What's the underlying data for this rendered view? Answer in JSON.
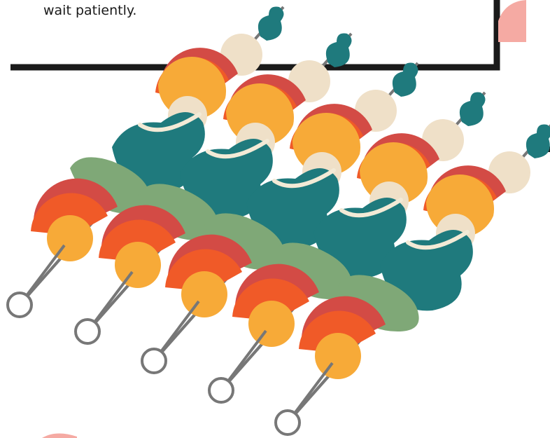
{
  "text": "wait patiently."
}
